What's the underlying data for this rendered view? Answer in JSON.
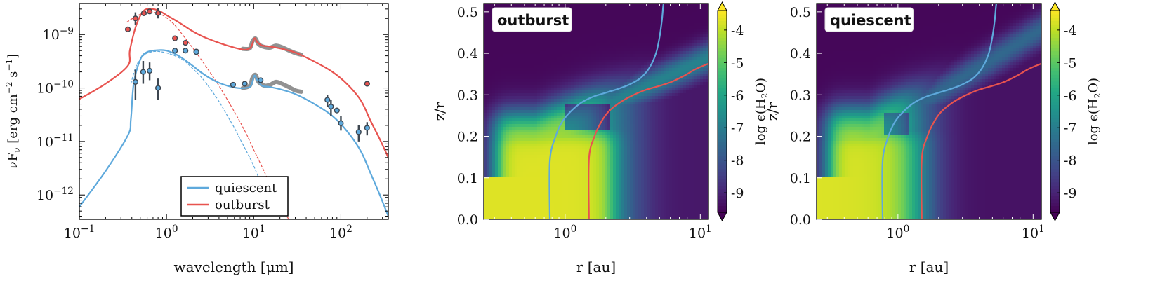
{
  "chart_data": [
    {
      "type": "line",
      "xlabel": "wavelength [μm]",
      "ylabel": "νF",
      "ylabel_sub": "ν",
      "ylabel_units": " [erg cm",
      "ylabel_units_sup1": "−2",
      "ylabel_units_mid": " s",
      "ylabel_units_sup2": "−1",
      "ylabel_units_end": "]",
      "xscale": "log",
      "yscale": "log",
      "xlim": [
        0.1,
        350
      ],
      "ylim": [
        3.5e-13,
        3.8e-09
      ],
      "xticks": [
        {
          "base": "10",
          "exp": "−1"
        },
        {
          "base": "10",
          "exp": "0"
        },
        {
          "base": "10",
          "exp": "1"
        },
        {
          "base": "10",
          "exp": "2"
        }
      ],
      "yticks": [
        {
          "base": "10",
          "exp": "−12"
        },
        {
          "base": "10",
          "exp": "−11"
        },
        {
          "base": "10",
          "exp": "−10"
        },
        {
          "base": "10",
          "exp": "−9"
        }
      ],
      "legend": {
        "placement": "bottom-center",
        "entries": [
          "quiescent",
          "outburst"
        ]
      },
      "colors": {
        "quiescent": "#5ea9dc",
        "outburst": "#e8534f",
        "photometry": "#3d4650",
        "spectrum": "#8c8c8c"
      },
      "series": [
        {
          "name": "outburst",
          "x": [
            0.1,
            0.2,
            0.36,
            0.38,
            0.45,
            0.55,
            0.7,
            0.85,
            1.0,
            1.3,
            1.6,
            2.0,
            2.5,
            3.2,
            4.0,
            5.0,
            6.5,
            8.0,
            9.3,
            10.2,
            11.0,
            12.5,
            15,
            20,
            30,
            50,
            80,
            120,
            170,
            220,
            280,
            350
          ],
          "y": [
            6.2e-11,
            1.2e-10,
            2.6e-10,
            5.1e-10,
            1.5e-09,
            2.8e-09,
            3e-09,
            2.7e-09,
            2.3e-09,
            1.8e-09,
            1.45e-09,
            1.15e-09,
            9.5e-10,
            8e-10,
            7e-10,
            6.2e-10,
            5.5e-10,
            5.2e-10,
            5.8e-10,
            8.5e-10,
            7.2e-10,
            6.2e-10,
            6e-10,
            5.5e-10,
            4.6e-10,
            3.1e-10,
            2e-10,
            1.15e-10,
            5.8e-11,
            2.4e-11,
            1.1e-11,
            5e-12
          ]
        },
        {
          "name": "quiescent",
          "x": [
            0.1,
            0.2,
            0.36,
            0.39,
            0.42,
            0.5,
            0.6,
            0.8,
            1.0,
            1.3,
            1.6,
            2.0,
            2.5,
            3.2,
            4.0,
            5.0,
            6.5,
            8.0,
            9.3,
            10.2,
            11.0,
            12.5,
            15,
            20,
            30,
            50,
            80,
            120,
            170,
            220,
            280,
            350
          ],
          "y": [
            6e-13,
            2.8e-12,
            1.3e-11,
            2.6e-11,
            1.2e-10,
            3.4e-10,
            4.7e-10,
            5.1e-10,
            5e-10,
            4.2e-10,
            3.4e-10,
            2.6e-10,
            1.95e-10,
            1.5e-10,
            1.25e-10,
            1.1e-10,
            1e-10,
            1e-10,
            1.1e-10,
            1.7e-10,
            1.4e-10,
            1.1e-10,
            1.05e-10,
            9.5e-11,
            7.7e-11,
            5e-11,
            3e-11,
            1.5e-11,
            6.5e-12,
            2.5e-12,
            1e-12,
            4e-13
          ]
        },
        {
          "kind": "stellar_photosphere_outburst",
          "style": "dashed",
          "x": [
            0.35,
            0.45,
            0.55,
            0.7,
            0.9,
            1.2,
            1.6,
            2.0,
            2.5,
            3.2,
            4.0,
            5.0,
            6.0,
            7.0,
            8.5,
            10,
            13,
            17,
            22,
            27
          ],
          "y": [
            1.7e-09,
            2.2e-09,
            2.5e-09,
            2.6e-09,
            2.3e-09,
            1.6e-09,
            9e-10,
            5.6e-10,
            3.4e-10,
            1.9e-10,
            1.1e-10,
            6e-11,
            3.6e-11,
            2.3e-11,
            1.25e-11,
            7e-12,
            2.9e-12,
            1.1e-12,
            5e-13,
            3e-13
          ]
        },
        {
          "kind": "stellar_photosphere_quiescent",
          "style": "dashed",
          "x": [
            0.39,
            0.45,
            0.55,
            0.7,
            0.9,
            1.2,
            1.6,
            2.0,
            2.5,
            3.2,
            4.0,
            5.0,
            6.0,
            7.0,
            8.5,
            10,
            12,
            14,
            16
          ],
          "y": [
            1.2e-10,
            2.6e-10,
            4.1e-10,
            4.8e-10,
            4.7e-10,
            4.1e-10,
            3.2e-10,
            2.3e-10,
            1.6e-10,
            9.5e-11,
            5.6e-11,
            3e-11,
            1.8e-11,
            1.1e-11,
            6e-12,
            3.5e-12,
            1.7e-12,
            8.5e-13,
            5e-13
          ]
        }
      ],
      "spectra": [
        {
          "x": [
            7.5,
            9.0,
            9.7,
            10.5,
            11.2,
            12.0,
            13.5,
            15.5,
            18,
            21,
            25,
            30,
            35
          ],
          "y": [
            5.4e-10,
            5.5e-10,
            7.5e-10,
            8.4e-10,
            6.8e-10,
            6.2e-10,
            5.8e-10,
            5.7e-10,
            6.2e-10,
            5.8e-10,
            5.1e-10,
            4.5e-10,
            4.2e-10
          ]
        },
        {
          "x": [
            7.5,
            9.0,
            9.7,
            10.5,
            11.2,
            12.0,
            13.5,
            15.5,
            18,
            21,
            25,
            30,
            35
          ],
          "y": [
            1e-10,
            1.1e-10,
            1.55e-10,
            1.75e-10,
            1.35e-10,
            1.2e-10,
            1.1e-10,
            1.15e-10,
            1.3e-10,
            1.2e-10,
            1.05e-10,
            9e-11,
            8.5e-11
          ]
        }
      ],
      "photometry_outburst": {
        "x": [
          0.36,
          0.44,
          0.55,
          0.64,
          0.8,
          1.25,
          1.65,
          2.2
        ],
        "y": [
          1.25e-09,
          2e-09,
          2.5e-09,
          2.7e-09,
          2.5e-09,
          8.5e-10,
          7e-10,
          4.8e-10
        ],
        "y_upper": [
          null,
          2.6e-09,
          null,
          null,
          3.1e-09,
          null,
          null,
          null
        ],
        "y_lower": [
          null,
          1.5e-09,
          null,
          null,
          2e-09,
          null,
          null,
          null
        ]
      },
      "photometry_quiescent": {
        "x": [
          0.44,
          0.54,
          0.64,
          0.8,
          1.25,
          1.65,
          2.2,
          5.8,
          7.9,
          12,
          70,
          77,
          90,
          100,
          160,
          200
        ],
        "y": [
          1.3e-10,
          2e-10,
          2.1e-10,
          1e-10,
          5e-10,
          5e-10,
          4.7e-10,
          1.15e-10,
          1.2e-10,
          1.4e-10,
          6e-11,
          4.5e-11,
          3.8e-11,
          2.2e-11,
          1.5e-11,
          1.8e-11
        ],
        "y_upper": [
          2.2e-10,
          3.2e-10,
          3e-10,
          1.5e-10,
          null,
          null,
          null,
          null,
          null,
          null,
          7.5e-11,
          6e-11,
          null,
          3e-11,
          2e-11,
          2.3e-11
        ],
        "y_lower": [
          6e-11,
          1.2e-10,
          1.4e-10,
          6e-11,
          null,
          null,
          null,
          null,
          null,
          null,
          4.5e-11,
          3e-11,
          null,
          1.6e-11,
          1e-11,
          1.3e-11
        ]
      },
      "photometry_extra": {
        "x": [
          200
        ],
        "y": [
          1.2e-10
        ]
      }
    },
    {
      "type": "heatmap",
      "tag": "outburst",
      "tag_color": "#e8534f",
      "xlabel": "r [au]",
      "ylabel": "z/r",
      "xscale": "log",
      "xlim": [
        0.25,
        11.5
      ],
      "ylim": [
        0.0,
        0.52
      ],
      "xticks": [
        {
          "base": "10",
          "exp": "0"
        },
        {
          "base": "10",
          "exp": "1"
        }
      ],
      "yticks": [
        "0.0",
        "0.1",
        "0.2",
        "0.3",
        "0.4",
        "0.5"
      ],
      "colorbar": {
        "label_pre": "log ϵ(H",
        "label_sub": "2",
        "label_post": "O)",
        "range": [
          -9.6,
          -3.4
        ],
        "ticks": [
          "-4",
          "-5",
          "-6",
          "-7",
          "-8",
          "-9"
        ],
        "tick_values": [
          -4,
          -5,
          -6,
          -7,
          -8,
          -9
        ]
      },
      "contours": [
        {
          "name": "quiescent",
          "color": "#5ea9dc",
          "r": [
            0.77,
            0.77,
            0.85,
            0.95,
            1.1,
            1.3,
            1.6,
            2.0,
            2.5,
            3.0,
            3.6,
            4.2,
            4.7,
            5.0,
            5.2,
            5.3,
            5.35
          ],
          "zr": [
            0.0,
            0.14,
            0.2,
            0.235,
            0.26,
            0.28,
            0.295,
            0.305,
            0.315,
            0.325,
            0.34,
            0.365,
            0.4,
            0.44,
            0.48,
            0.51,
            0.52
          ]
        },
        {
          "name": "outburst",
          "color": "#e8534f",
          "r": [
            1.5,
            1.5,
            1.65,
            1.85,
            2.1,
            2.5,
            3.0,
            3.8,
            4.8,
            6.0,
            7.5,
            9.0,
            10.5,
            11.5
          ],
          "zr": [
            0.0,
            0.145,
            0.2,
            0.235,
            0.26,
            0.28,
            0.295,
            0.31,
            0.32,
            0.33,
            0.345,
            0.36,
            0.37,
            0.375
          ]
        }
      ],
      "model": {
        "rin": 0.25,
        "r_front": 1.45,
        "r_front_width": 0.35,
        "r_shelf": 2.9,
        "r_shelf_width": 0.9,
        "surface_base": 0.25,
        "surface_slope": 0.15,
        "surface_width": 0.02,
        "inner_wall_r": 0.3,
        "core_top": 0.205,
        "core_top_r": 2.2,
        "low_level": -9.5,
        "core_level": -3.7,
        "mid_level": -4.8,
        "shelf_level": -6.3,
        "far_level": -9.2,
        "wisp": {
          "slope": 0.15,
          "offset": 0.185,
          "strength": 1.2
        },
        "mask": {
          "r_min": 1.0,
          "r_max": 2.2,
          "zr_min": 0.215,
          "zr_max": 0.28,
          "gain": 1.0
        }
      }
    },
    {
      "type": "heatmap",
      "tag": "quiescent",
      "tag_color": "#5ea9dc",
      "xlabel": "r [au]",
      "ylabel": "z/r",
      "xscale": "log",
      "xlim": [
        0.25,
        11.5
      ],
      "ylim": [
        0.0,
        0.52
      ],
      "xticks": [
        {
          "base": "10",
          "exp": "0"
        },
        {
          "base": "10",
          "exp": "1"
        }
      ],
      "yticks": [
        "0.0",
        "0.1",
        "0.2",
        "0.3",
        "0.4",
        "0.5"
      ],
      "colorbar": {
        "label_pre": "log ϵ(H",
        "label_sub": "2",
        "label_post": "O)",
        "range": [
          -9.6,
          -3.4
        ],
        "ticks": [
          "-4",
          "-5",
          "-6",
          "-7",
          "-8",
          "-9"
        ],
        "tick_values": [
          -4,
          -5,
          -6,
          -7,
          -8,
          -9
        ]
      },
      "contours": [
        {
          "name": "quiescent",
          "color": "#5ea9dc",
          "r": [
            0.77,
            0.77,
            0.85,
            0.95,
            1.1,
            1.3,
            1.6,
            2.0,
            2.5,
            3.0,
            3.6,
            4.2,
            4.7,
            5.0,
            5.2,
            5.3,
            5.35
          ],
          "zr": [
            0.0,
            0.14,
            0.2,
            0.235,
            0.26,
            0.28,
            0.295,
            0.305,
            0.315,
            0.325,
            0.34,
            0.365,
            0.4,
            0.44,
            0.48,
            0.51,
            0.52
          ]
        },
        {
          "name": "outburst",
          "color": "#e8534f",
          "r": [
            1.5,
            1.5,
            1.65,
            1.85,
            2.1,
            2.5,
            3.0,
            3.8,
            4.8,
            6.0,
            7.5,
            9.0,
            10.5,
            11.5
          ],
          "zr": [
            0.0,
            0.145,
            0.2,
            0.235,
            0.26,
            0.28,
            0.295,
            0.31,
            0.32,
            0.33,
            0.345,
            0.36,
            0.37,
            0.375
          ]
        }
      ],
      "model": {
        "rin": 0.25,
        "r_front": 0.95,
        "r_front_width": 0.22,
        "r_shelf": 1.6,
        "r_shelf_width": 0.5,
        "surface_base": 0.26,
        "surface_slope": 0.2,
        "surface_width": 0.02,
        "inner_wall_r": 0.3,
        "core_top": 0.205,
        "core_top_r": 1.2,
        "low_level": -9.5,
        "core_level": -3.7,
        "mid_level": -5.0,
        "shelf_level": -6.6,
        "far_level": -9.3,
        "wisp": {
          "slope": 0.2,
          "offset": 0.185,
          "strength": 0.9
        },
        "mask": {
          "r_min": 0.8,
          "r_max": 1.2,
          "zr_min": 0.2,
          "zr_max": 0.26,
          "gain": 0.8
        }
      }
    }
  ]
}
